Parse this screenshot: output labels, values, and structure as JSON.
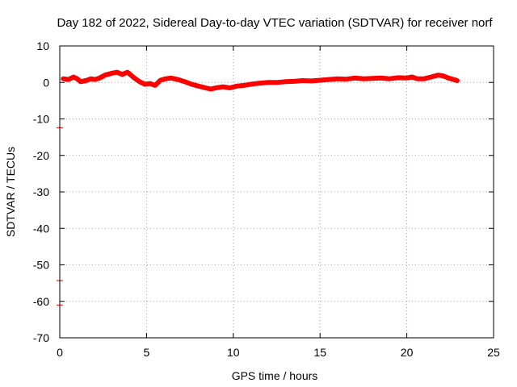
{
  "chart_data": {
    "type": "line",
    "title": "Day 182 of 2022, Sidereal Day-to-day VTEC variation (SDTVAR) for receiver norf",
    "xlabel": "GPS time / hours",
    "ylabel": "SDTVAR / TECUs",
    "xlim": [
      0,
      25
    ],
    "ylim": [
      -70,
      10
    ],
    "xticks": [
      0,
      5,
      10,
      15,
      20,
      25
    ],
    "yticks": [
      10,
      0,
      -10,
      -20,
      -30,
      -40,
      -50,
      -60,
      -70
    ],
    "grid": true,
    "series_color": "#ff0000",
    "series": [
      {
        "name": "SDTVAR",
        "x": [
          0.2,
          0.5,
          0.8,
          1.0,
          1.2,
          1.5,
          1.8,
          2.0,
          2.3,
          2.6,
          3.0,
          3.3,
          3.6,
          3.9,
          4.1,
          4.3,
          4.6,
          4.9,
          5.2,
          5.5,
          5.8,
          6.1,
          6.4,
          6.8,
          7.2,
          7.6,
          8.0,
          8.4,
          8.7,
          9.0,
          9.4,
          9.8,
          10.2,
          10.6,
          11.0,
          11.5,
          12.0,
          12.5,
          13.0,
          13.5,
          14.0,
          14.5,
          15.0,
          15.5,
          16.0,
          16.5,
          17.0,
          17.5,
          18.0,
          18.5,
          19.0,
          19.5,
          20.0,
          20.3,
          20.6,
          21.0,
          21.4,
          21.8,
          22.1,
          22.4,
          22.7,
          22.9
        ],
        "y": [
          1.0,
          0.8,
          1.5,
          1.0,
          0.2,
          0.5,
          1.0,
          0.8,
          1.2,
          2.0,
          2.5,
          2.8,
          2.2,
          2.8,
          2.0,
          1.2,
          0.2,
          -0.5,
          -0.3,
          -0.8,
          0.6,
          1.0,
          1.2,
          0.8,
          0.2,
          -0.5,
          -1.0,
          -1.5,
          -1.8,
          -1.5,
          -1.2,
          -1.5,
          -1.0,
          -0.8,
          -0.5,
          -0.2,
          0.0,
          0.0,
          0.2,
          0.3,
          0.5,
          0.4,
          0.6,
          0.8,
          1.0,
          0.9,
          1.2,
          1.0,
          1.1,
          1.2,
          1.0,
          1.3,
          1.2,
          1.5,
          1.0,
          1.0,
          1.5,
          2.0,
          1.8,
          1.2,
          0.8,
          0.5
        ]
      }
    ],
    "outliers": [
      {
        "x": 0.0,
        "y": -12.4
      },
      {
        "x": 0.0,
        "y": -54.3
      },
      {
        "x": 0.0,
        "y": -61.0
      }
    ]
  }
}
